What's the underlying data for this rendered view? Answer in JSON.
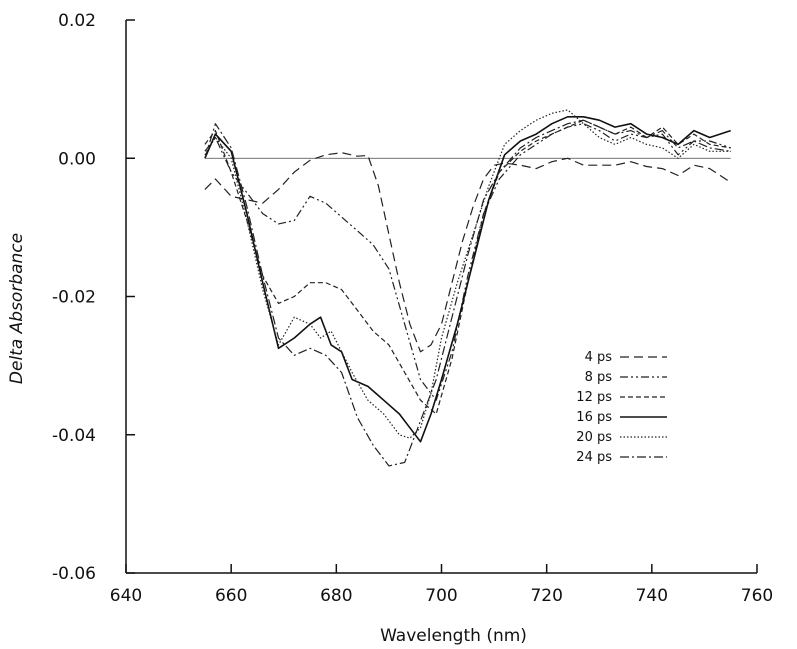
{
  "chart_data": {
    "type": "line",
    "xlabel": "Wavelength (nm)",
    "ylabel": "Delta Absorbance",
    "xlim": [
      640,
      760
    ],
    "ylim": [
      -0.06,
      0.02
    ],
    "x_ticks": [
      640,
      660,
      680,
      700,
      720,
      740,
      760
    ],
    "x_tick_labels": [
      "640",
      "660",
      "680",
      "700",
      "720",
      "740",
      "760"
    ],
    "y_ticks": [
      0.02,
      0.0,
      -0.02,
      -0.04,
      -0.06
    ],
    "y_tick_labels": [
      "0.02",
      "0.00",
      "-0.02",
      "-0.04",
      "-0.06"
    ],
    "grid": false,
    "legend_position": "right",
    "baseline": {
      "x": [
        655,
        755
      ],
      "y": 0.0
    },
    "series": [
      {
        "name": "4 ps",
        "dash": "9,5",
        "color": "#222222",
        "x": [
          655,
          657,
          660,
          663,
          666,
          669,
          672,
          675,
          678,
          681,
          684,
          686,
          688,
          690,
          692,
          694,
          696,
          698,
          700,
          702,
          704,
          706,
          708,
          710,
          712,
          715,
          718,
          721,
          724,
          727,
          730,
          733,
          736,
          739,
          742,
          745,
          748,
          751,
          755
        ],
        "y": [
          -0.0045,
          -0.003,
          -0.0055,
          -0.006,
          -0.0065,
          -0.0045,
          -0.002,
          -0.0003,
          0.0005,
          0.0008,
          0.0003,
          0.0004,
          -0.004,
          -0.011,
          -0.018,
          -0.024,
          -0.028,
          -0.027,
          -0.024,
          -0.018,
          -0.012,
          -0.007,
          -0.003,
          -0.001,
          -0.0007,
          -0.001,
          -0.0015,
          -0.0005,
          0.0,
          -0.001,
          -0.001,
          -0.001,
          -0.0005,
          -0.0012,
          -0.0015,
          -0.0025,
          -0.001,
          -0.0015,
          -0.0035
        ]
      },
      {
        "name": "8 ps",
        "dash": "8,3,2,3,2,3",
        "color": "#222222",
        "x": [
          655,
          657,
          660,
          663,
          666,
          669,
          672,
          675,
          678,
          681,
          684,
          687,
          690,
          693,
          696,
          699,
          702,
          705,
          708,
          711,
          715,
          718,
          721,
          724,
          727,
          730,
          733,
          736,
          739,
          742,
          745,
          748,
          751,
          755
        ],
        "y": [
          0.001,
          0.003,
          -0.002,
          -0.005,
          -0.008,
          -0.0095,
          -0.009,
          -0.0055,
          -0.0065,
          -0.0085,
          -0.0105,
          -0.0125,
          -0.016,
          -0.024,
          -0.032,
          -0.035,
          -0.028,
          -0.017,
          -0.008,
          -0.003,
          0.0005,
          0.002,
          0.0035,
          0.0045,
          0.005,
          0.004,
          0.0025,
          0.0035,
          0.003,
          0.0035,
          0.0005,
          0.0025,
          0.0025,
          0.0015
        ]
      },
      {
        "name": "12 ps",
        "dash": "5,3",
        "color": "#222222",
        "x": [
          655,
          657,
          660,
          663,
          666,
          669,
          672,
          675,
          678,
          681,
          684,
          687,
          690,
          693,
          696,
          699,
          702,
          705,
          708,
          711,
          715,
          718,
          721,
          724,
          727,
          730,
          733,
          736,
          739,
          742,
          745,
          748,
          751,
          755
        ],
        "y": [
          0.002,
          0.004,
          -0.002,
          -0.009,
          -0.017,
          -0.021,
          -0.02,
          -0.018,
          -0.018,
          -0.019,
          -0.022,
          -0.025,
          -0.027,
          -0.031,
          -0.035,
          -0.037,
          -0.029,
          -0.018,
          -0.008,
          -0.002,
          0.001,
          0.0025,
          0.0035,
          0.0045,
          0.0055,
          0.0045,
          0.0035,
          0.0045,
          0.003,
          0.0045,
          0.002,
          0.0035,
          0.002,
          0.0015
        ]
      },
      {
        "name": "16 ps",
        "dash": "",
        "color": "#111111",
        "x": [
          655,
          657,
          660,
          663,
          666,
          669,
          672,
          675,
          677,
          679,
          681,
          683,
          686,
          689,
          692,
          694,
          696,
          698,
          700,
          703,
          706,
          709,
          712,
          715,
          718,
          721,
          724,
          727,
          730,
          733,
          736,
          739,
          742,
          745,
          748,
          751,
          755
        ],
        "y": [
          0.0,
          0.0035,
          0.001,
          -0.008,
          -0.018,
          -0.0275,
          -0.026,
          -0.024,
          -0.023,
          -0.027,
          -0.028,
          -0.032,
          -0.033,
          -0.035,
          -0.037,
          -0.039,
          -0.041,
          -0.037,
          -0.032,
          -0.024,
          -0.015,
          -0.006,
          0.0005,
          0.0025,
          0.0035,
          0.005,
          0.006,
          0.006,
          0.0055,
          0.0045,
          0.005,
          0.0035,
          0.003,
          0.002,
          0.004,
          0.003,
          0.004
        ]
      },
      {
        "name": "20 ps",
        "dash": "1.5,2",
        "color": "#222222",
        "x": [
          655,
          657,
          660,
          663,
          666,
          669,
          672,
          675,
          677,
          679,
          681,
          683,
          686,
          689,
          692,
          694,
          696,
          698,
          700,
          703,
          706,
          709,
          712,
          715,
          718,
          721,
          724,
          727,
          730,
          733,
          736,
          739,
          742,
          745,
          748,
          751,
          755
        ],
        "y": [
          0.0005,
          0.003,
          0.0,
          -0.009,
          -0.019,
          -0.027,
          -0.023,
          -0.024,
          -0.026,
          -0.025,
          -0.028,
          -0.031,
          -0.035,
          -0.037,
          -0.04,
          -0.0405,
          -0.039,
          -0.034,
          -0.026,
          -0.018,
          -0.011,
          -0.004,
          0.002,
          0.004,
          0.0055,
          0.0065,
          0.007,
          0.005,
          0.003,
          0.002,
          0.003,
          0.002,
          0.0015,
          0.0,
          0.002,
          0.001,
          0.001
        ]
      },
      {
        "name": "24 ps",
        "dash": "9,3,2,3",
        "color": "#222222",
        "x": [
          655,
          657,
          660,
          663,
          666,
          669,
          672,
          675,
          678,
          681,
          684,
          687,
          690,
          693,
          696,
          699,
          702,
          705,
          708,
          711,
          715,
          718,
          721,
          724,
          727,
          730,
          733,
          736,
          739,
          742,
          745,
          748,
          751,
          755
        ],
        "y": [
          0.0,
          0.005,
          0.0015,
          -0.007,
          -0.017,
          -0.026,
          -0.0285,
          -0.0275,
          -0.0285,
          -0.031,
          -0.0375,
          -0.0415,
          -0.0445,
          -0.044,
          -0.038,
          -0.032,
          -0.023,
          -0.014,
          -0.006,
          -0.002,
          0.0015,
          0.003,
          0.004,
          0.005,
          0.0055,
          0.0045,
          0.0035,
          0.004,
          0.003,
          0.004,
          0.0015,
          0.0025,
          0.0015,
          0.001
        ]
      }
    ]
  }
}
